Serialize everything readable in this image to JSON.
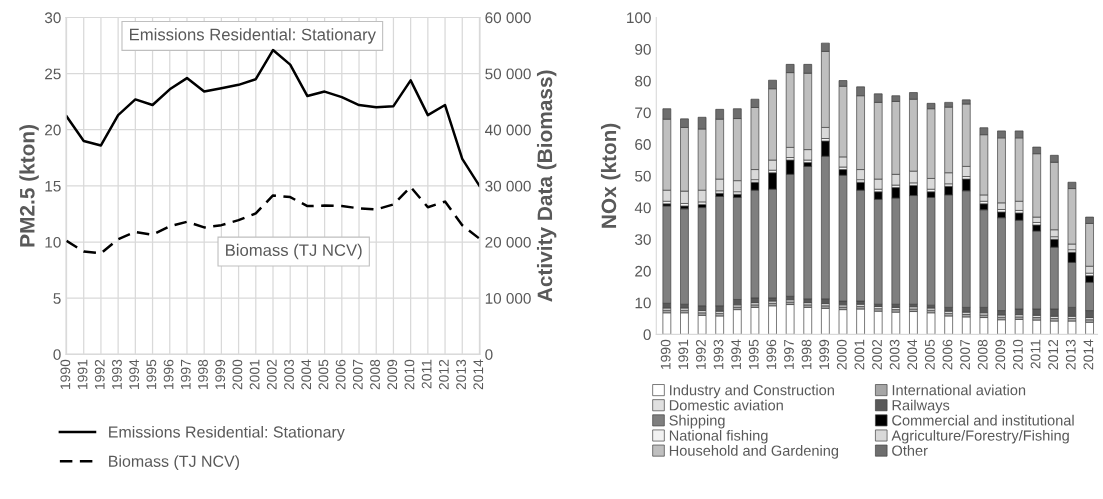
{
  "chart_data": [
    {
      "type": "line",
      "ylabel": "PM2.5 (kton)",
      "y2label": "Activity Data (Biomass)",
      "categories": [
        "1990",
        "1991",
        "1992",
        "1993",
        "1994",
        "1995",
        "1996",
        "1997",
        "1998",
        "1999",
        "2000",
        "2001",
        "2002",
        "2003",
        "2004",
        "2005",
        "2006",
        "2007",
        "2008",
        "2009",
        "2010",
        "2011",
        "2012",
        "2013",
        "2014"
      ],
      "series": [
        {
          "name": "Emissions Residential: Stationary",
          "color": "#000000",
          "line_style": "solid",
          "values": [
            21.2,
            19.0,
            18.6,
            21.3,
            22.7,
            22.2,
            23.6,
            24.6,
            23.4,
            23.7,
            24.0,
            24.5,
            27.1,
            25.8,
            23.0,
            23.4,
            22.9,
            22.2,
            22.0,
            22.1,
            24.4,
            21.3,
            22.2,
            17.4,
            15.0
          ]
        },
        {
          "name": "Biomass (TJ NCV)",
          "color": "#000000",
          "line_style": "dashed",
          "axis": "y2",
          "values": [
            20200,
            18300,
            18000,
            20500,
            21800,
            21300,
            22800,
            23600,
            22600,
            23000,
            23900,
            25100,
            28300,
            28000,
            26400,
            26500,
            26400,
            26000,
            25800,
            26700,
            29800,
            26200,
            27200,
            23000,
            20600
          ]
        }
      ],
      "annotations": [
        "Emissions Residential: Stationary",
        "Biomass (TJ NCV)"
      ],
      "ylim": [
        0,
        30
      ],
      "yticks": [
        0,
        5,
        10,
        15,
        20,
        25,
        30
      ],
      "y2lim": [
        0,
        60000
      ],
      "y2ticks": [
        {
          "value": 0,
          "label": "0"
        },
        {
          "value": 10000,
          "label": "10 000"
        },
        {
          "value": 20000,
          "label": "20 000"
        },
        {
          "value": 30000,
          "label": "30 000"
        },
        {
          "value": 40000,
          "label": "40 000"
        },
        {
          "value": 50000,
          "label": "50 000"
        },
        {
          "value": 60000,
          "label": "60 000"
        }
      ],
      "grid": true,
      "legend": "bottom"
    },
    {
      "type": "bar",
      "stacked": true,
      "ylabel": "NOx (kton)",
      "categories": [
        "1990",
        "1991",
        "1992",
        "1993",
        "1994",
        "1995",
        "1996",
        "1997",
        "1998",
        "1999",
        "2000",
        "2001",
        "2002",
        "2003",
        "2004",
        "2005",
        "2006",
        "2007",
        "2008",
        "2009",
        "2010",
        "2011",
        "2012",
        "2013",
        "2014"
      ],
      "series": [
        {
          "name": "Industry and Construction",
          "color": "#ffffff",
          "values": [
            6.8,
            6.8,
            6.0,
            5.8,
            7.8,
            8.5,
            9.0,
            9.4,
            8.5,
            8.2,
            7.8,
            8.0,
            7.3,
            7.0,
            7.2,
            6.8,
            5.8,
            5.5,
            5.3,
            4.6,
            4.7,
            4.5,
            4.2,
            4.2,
            3.8
          ]
        },
        {
          "name": "International aviation",
          "color": "#a6a6a6",
          "values": [
            0.8,
            0.8,
            0.8,
            0.8,
            0.8,
            0.8,
            0.8,
            0.8,
            0.8,
            0.8,
            0.8,
            0.8,
            0.8,
            0.8,
            0.8,
            0.8,
            0.8,
            0.8,
            0.8,
            0.8,
            0.8,
            0.8,
            0.8,
            0.8,
            0.8
          ]
        },
        {
          "name": "Domestic aviation",
          "color": "#e0e0e0",
          "values": [
            0.7,
            0.7,
            0.7,
            0.7,
            0.7,
            0.7,
            0.7,
            0.7,
            0.7,
            0.7,
            0.7,
            0.7,
            0.7,
            0.7,
            0.7,
            0.7,
            0.7,
            0.7,
            0.7,
            0.7,
            0.7,
            0.7,
            0.7,
            0.7,
            0.7
          ]
        },
        {
          "name": "Railways",
          "color": "#595959",
          "values": [
            1.5,
            1.2,
            1.5,
            1.7,
            1.7,
            1.5,
            1.0,
            1.1,
            1.2,
            1.5,
            1.2,
            1.0,
            0.7,
            1.0,
            0.8,
            0.9,
            1.2,
            1.5,
            1.7,
            1.4,
            1.8,
            2.0,
            2.3,
            2.8,
            2.2
          ]
        },
        {
          "name": "Shipping",
          "color": "#7f7f7f",
          "values": [
            30.7,
            30.1,
            31.0,
            34.5,
            32.2,
            34.0,
            34.3,
            38.5,
            41.8,
            45.0,
            39.7,
            35.0,
            33.1,
            33.5,
            34.3,
            34.0,
            35.5,
            36.8,
            30.8,
            29.3,
            28.0,
            24.6,
            19.5,
            14.2,
            8.9
          ]
        },
        {
          "name": "Commercial and institutional",
          "color": "#000000",
          "values": [
            0.7,
            0.9,
            1.0,
            1.0,
            1.0,
            2.5,
            5.2,
            4.5,
            1.2,
            4.8,
            1.8,
            2.5,
            2.4,
            3.3,
            3.2,
            1.8,
            2.7,
            3.7,
            1.9,
            1.8,
            2.3,
            1.9,
            2.5,
            3.2,
            2.1
          ]
        },
        {
          "name": "National fishing",
          "color": "#f2f2f2",
          "values": [
            0.8,
            0.8,
            0.8,
            0.8,
            0.8,
            0.8,
            0.8,
            0.8,
            0.8,
            0.8,
            0.8,
            0.8,
            0.8,
            0.8,
            0.8,
            0.8,
            0.8,
            0.8,
            0.8,
            0.8,
            0.8,
            0.8,
            0.8,
            0.8,
            0.8
          ]
        },
        {
          "name": "Agriculture/Forestry/Fishing",
          "color": "#d9d9d9",
          "values": [
            3.5,
            3.9,
            3.7,
            3.7,
            3.5,
            3.2,
            3.2,
            3.2,
            3.3,
            3.5,
            3.2,
            3.2,
            3.2,
            3.4,
            3.7,
            3.4,
            3.5,
            3.2,
            2.0,
            2.1,
            2.9,
            1.7,
            2.2,
            1.8,
            2.2
          ]
        },
        {
          "name": "Household and Gardening",
          "color": "#bfbfbf",
          "values": [
            22.4,
            20.1,
            19.3,
            18.9,
            19.6,
            19.6,
            22.5,
            23.6,
            24.1,
            24.0,
            22.3,
            23.3,
            24.2,
            23.0,
            22.7,
            22.0,
            20.7,
            19.7,
            19.0,
            20.5,
            20.0,
            20.0,
            21.3,
            17.5,
            13.5
          ]
        },
        {
          "name": "Other",
          "color": "#6e6e6e",
          "values": [
            3.3,
            2.7,
            3.7,
            3.1,
            3.1,
            2.6,
            2.7,
            2.6,
            2.8,
            2.6,
            1.8,
            2.8,
            2.7,
            1.8,
            2.1,
            1.7,
            1.5,
            1.3,
            2.2,
            2.2,
            2.2,
            2.1,
            2.2,
            2.0,
            2.0
          ]
        }
      ],
      "ylim": [
        0,
        100
      ],
      "yticks": [
        0,
        10,
        20,
        30,
        40,
        50,
        60,
        70,
        80,
        90,
        100
      ],
      "grid": false,
      "legend": "bottom"
    }
  ]
}
